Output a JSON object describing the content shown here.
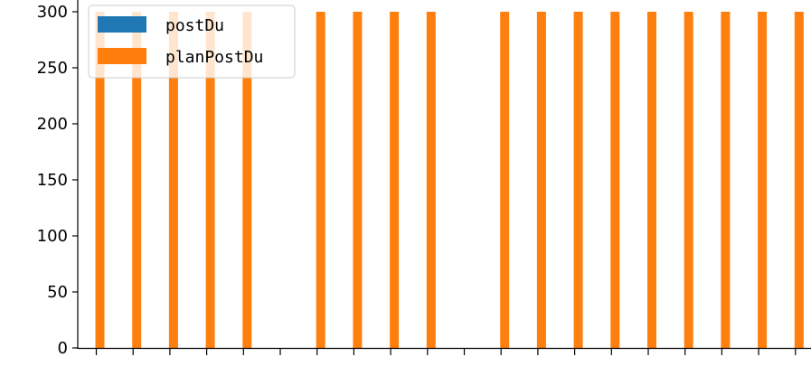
{
  "chart_data": {
    "type": "bar",
    "x_tick_labels_visible": false,
    "categories": [
      "",
      "",
      "",
      "",
      "",
      "",
      "",
      "",
      "",
      "",
      "",
      "",
      "",
      "",
      "",
      "",
      "",
      "",
      "",
      ""
    ],
    "series": [
      {
        "name": "postDu",
        "color": "#1f77b4",
        "values": [
          0,
          0,
          0,
          0,
          0,
          0,
          0,
          0,
          0,
          0,
          0,
          0,
          0,
          0,
          0,
          0,
          0,
          0,
          0,
          0
        ]
      },
      {
        "name": "planPostDu",
        "color": "#ff7f0e",
        "values": [
          300,
          300,
          300,
          300,
          300,
          0,
          300,
          300,
          300,
          300,
          0,
          300,
          300,
          300,
          300,
          300,
          300,
          300,
          300,
          300
        ]
      }
    ],
    "yticks": [
      "0",
      "50",
      "100",
      "150",
      "200",
      "250",
      "300"
    ],
    "ylim": [
      0,
      300
    ],
    "title": "",
    "xlabel": "",
    "ylabel": "",
    "grid": false,
    "legend_position": "upper-left"
  }
}
